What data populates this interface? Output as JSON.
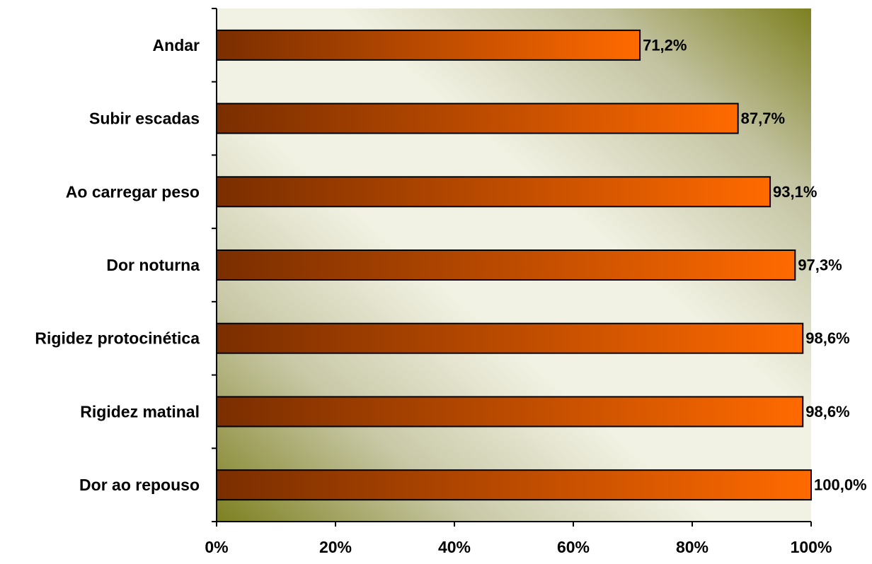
{
  "chart_data": {
    "type": "bar",
    "orientation": "horizontal",
    "categories": [
      "Andar",
      "Subir escadas",
      "Ao carregar peso",
      "Dor noturna",
      "Rigidez protocinética",
      "Rigidez matinal",
      "Dor ao repouso"
    ],
    "values": [
      71.2,
      87.7,
      93.1,
      97.3,
      98.6,
      98.6,
      100.0
    ],
    "value_labels": [
      "71,2%",
      "87,7%",
      "93,1%",
      "97,3%",
      "98,6%",
      "98,6%",
      "100,0%"
    ],
    "x_ticks": [
      "0%",
      "20%",
      "40%",
      "60%",
      "80%",
      "100%"
    ],
    "xlim": [
      0,
      100
    ],
    "title": "",
    "xlabel": "",
    "ylabel": "",
    "grid": false,
    "legend": "none"
  },
  "colors": {
    "bar_dark": "#7a2e00",
    "bar_mid": "#c24e00",
    "bar_light": "#ff6a00",
    "bg_light": "#f2f2e4",
    "bg_olive": "#7d8020",
    "axis": "#000000"
  }
}
